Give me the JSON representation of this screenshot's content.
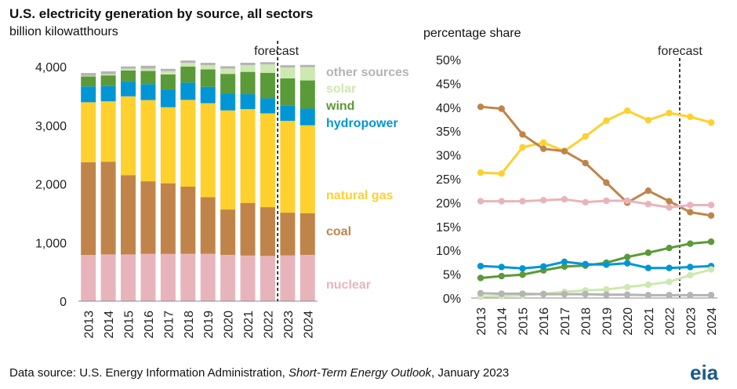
{
  "title": "U.S. electricity generation by source, all sectors",
  "left_unit": "billion kilowatthours",
  "right_unit": "percentage share",
  "forecast_label": "forecast",
  "footer": {
    "prefix": "Data source: U.S. Energy Information Administration, ",
    "italic": "Short-Term Energy Outlook",
    "suffix": ", January 2023"
  },
  "logo": "eia",
  "colors": {
    "nuclear": "#e8b4bc",
    "coal": "#c0844a",
    "natural_gas": "#ffd02e",
    "hydropower": "#0096d6",
    "wind": "#5a9a38",
    "solar": "#cde8b0",
    "other_sources": "#b4b4b4"
  },
  "chart_data": [
    {
      "type": "bar",
      "stacked": true,
      "ylabel": "billion kilowatthours",
      "ylim": [
        0,
        4000
      ],
      "yticks": [
        "0",
        "1,000",
        "2,000",
        "3,000",
        "4,000"
      ],
      "categories": [
        "2013",
        "2014",
        "2015",
        "2016",
        "2017",
        "2018",
        "2019",
        "2020",
        "2021",
        "2022",
        "2023",
        "2024"
      ],
      "forecast_after": "2022",
      "series": [
        {
          "name": "nuclear",
          "key": "nuclear",
          "values": [
            789,
            797,
            797,
            806,
            805,
            807,
            809,
            790,
            778,
            772,
            780,
            790
          ]
        },
        {
          "name": "coal",
          "key": "coal",
          "values": [
            1581,
            1582,
            1352,
            1239,
            1206,
            1146,
            965,
            774,
            898,
            832,
            730,
            710
          ]
        },
        {
          "name": "natural gas",
          "key": "natural_gas",
          "values": [
            1023,
            1030,
            1345,
            1385,
            1297,
            1480,
            1602,
            1690,
            1600,
            1600,
            1565,
            1500
          ]
        },
        {
          "name": "hydropower",
          "key": "hydropower",
          "values": [
            270,
            260,
            251,
            271,
            303,
            295,
            280,
            285,
            255,
            255,
            265,
            285
          ]
        },
        {
          "name": "wind",
          "key": "wind",
          "values": [
            169,
            182,
            191,
            227,
            257,
            273,
            298,
            338,
            380,
            434,
            460,
            480
          ]
        },
        {
          "name": "solar",
          "key": "solar",
          "values": [
            10,
            20,
            28,
            38,
            55,
            65,
            72,
            91,
            116,
            144,
            185,
            225
          ]
        },
        {
          "name": "other sources",
          "key": "other_sources",
          "values": [
            50,
            50,
            40,
            50,
            40,
            40,
            40,
            40,
            40,
            40,
            40,
            40
          ]
        }
      ]
    },
    {
      "type": "line",
      "ylabel": "percentage share",
      "ylim": [
        0,
        50
      ],
      "yticks": [
        "0%",
        "5%",
        "10%",
        "15%",
        "20%",
        "25%",
        "30%",
        "35%",
        "40%",
        "45%",
        "50%"
      ],
      "categories": [
        "2013",
        "2014",
        "2015",
        "2016",
        "2017",
        "2018",
        "2019",
        "2020",
        "2021",
        "2022",
        "2023",
        "2024"
      ],
      "forecast_after": "2022",
      "series": [
        {
          "key": "natural_gas",
          "values": [
            26.3,
            26.1,
            31.6,
            32.6,
            30.8,
            33.9,
            37.2,
            39.3,
            37.3,
            38.8,
            38.0,
            36.8
          ]
        },
        {
          "key": "coal",
          "values": [
            40.1,
            39.7,
            34.3,
            31.3,
            30.8,
            28.3,
            24.2,
            20.0,
            22.5,
            20.3,
            18.0,
            17.3
          ]
        },
        {
          "key": "nuclear",
          "values": [
            20.3,
            20.3,
            20.3,
            20.5,
            20.7,
            20.1,
            20.4,
            20.4,
            19.7,
            19.0,
            19.5,
            19.5
          ]
        },
        {
          "key": "wind",
          "values": [
            4.2,
            4.6,
            4.9,
            5.8,
            6.6,
            6.8,
            7.4,
            8.6,
            9.5,
            10.5,
            11.4,
            11.8
          ]
        },
        {
          "key": "hydropower",
          "values": [
            6.7,
            6.5,
            6.2,
            6.6,
            7.6,
            7.1,
            7.0,
            7.3,
            6.3,
            6.3,
            6.5,
            6.7
          ]
        },
        {
          "key": "solar",
          "values": [
            0.3,
            0.4,
            0.6,
            0.9,
            1.3,
            1.6,
            1.8,
            2.3,
            2.8,
            3.4,
            4.8,
            6.0
          ]
        },
        {
          "key": "other_sources",
          "values": [
            1.0,
            0.9,
            0.9,
            0.8,
            0.8,
            0.8,
            0.7,
            0.7,
            0.6,
            0.6,
            0.6,
            0.6
          ]
        }
      ]
    }
  ]
}
